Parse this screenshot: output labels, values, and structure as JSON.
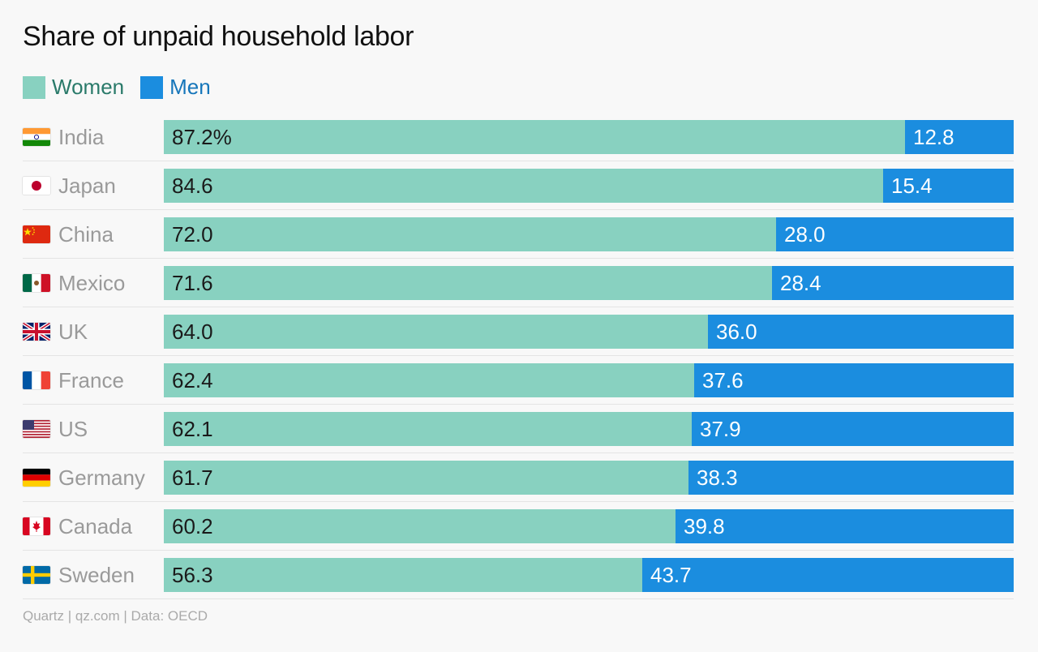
{
  "title": "Share of unpaid household labor",
  "legend": {
    "women_label": "Women",
    "men_label": "Men",
    "women_color": "#88d1c0",
    "men_color": "#1b8ddf",
    "women_text_color": "#2a7a6a",
    "men_text_color": "#1676ba"
  },
  "footer": "Quartz | qz.com | Data: OECD",
  "chart_data": {
    "type": "bar",
    "orientation": "horizontal",
    "stacked": true,
    "title": "Share of unpaid household labor",
    "categories": [
      "India",
      "Japan",
      "China",
      "Mexico",
      "UK",
      "France",
      "US",
      "Germany",
      "Canada",
      "Sweden"
    ],
    "flags": [
      "india-flag-icon",
      "japan-flag-icon",
      "china-flag-icon",
      "mexico-flag-icon",
      "uk-flag-icon",
      "france-flag-icon",
      "us-flag-icon",
      "germany-flag-icon",
      "canada-flag-icon",
      "sweden-flag-icon"
    ],
    "series": [
      {
        "name": "Women",
        "values": [
          87.2,
          84.6,
          72.0,
          71.6,
          64.0,
          62.4,
          62.1,
          61.7,
          60.2,
          56.3
        ],
        "labels": [
          "87.2%",
          "84.6",
          "72.0",
          "71.6",
          "64.0",
          "62.4",
          "62.1",
          "61.7",
          "60.2",
          "56.3"
        ]
      },
      {
        "name": "Men",
        "values": [
          12.8,
          15.4,
          28.0,
          28.4,
          36.0,
          37.6,
          37.9,
          38.3,
          39.8,
          43.7
        ],
        "labels": [
          "12.8",
          "15.4",
          "28.0",
          "28.4",
          "36.0",
          "37.6",
          "37.9",
          "38.3",
          "39.8",
          "43.7"
        ]
      }
    ],
    "xlim": [
      0,
      100
    ],
    "grid": false,
    "legend_position": "top-left"
  }
}
